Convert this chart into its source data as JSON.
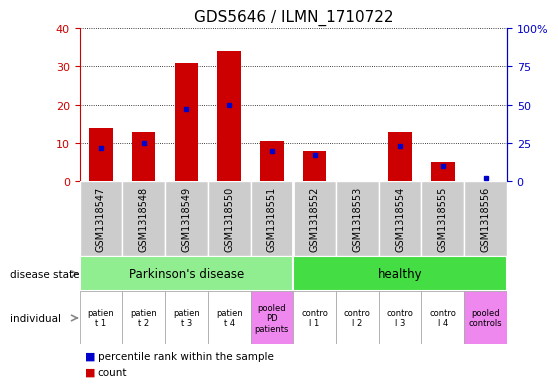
{
  "title": "GDS5646 / ILMN_1710722",
  "samples": [
    "GSM1318547",
    "GSM1318548",
    "GSM1318549",
    "GSM1318550",
    "GSM1318551",
    "GSM1318552",
    "GSM1318553",
    "GSM1318554",
    "GSM1318555",
    "GSM1318556"
  ],
  "red_counts": [
    14,
    13,
    31,
    34,
    10.5,
    8,
    0,
    13,
    5,
    0.2
  ],
  "blue_percentiles": [
    22,
    25,
    47,
    50,
    20,
    17,
    0,
    23,
    10,
    2
  ],
  "ylim_left": [
    0,
    40
  ],
  "ylim_right": [
    0,
    100
  ],
  "yticks_left": [
    0,
    10,
    20,
    30,
    40
  ],
  "yticks_right": [
    0,
    25,
    50,
    75,
    100
  ],
  "individual_labels": [
    "patien\nt 1",
    "patien\nt 2",
    "patien\nt 3",
    "patien\nt 4",
    "pooled\nPD\npatients",
    "contro\nl 1",
    "contro\nl 2",
    "contro\nl 3",
    "contro\nl 4",
    "pooled\ncontrols"
  ],
  "individual_colors": [
    "#ff88ff",
    "#ff88ff",
    "#ff88ff",
    "#ff88ff",
    "#ff88ff",
    "#ff88ff",
    "#ff88ff",
    "#ff88ff",
    "#ff88ff",
    "#ff88ff"
  ],
  "bar_width": 0.55,
  "red_color": "#cc0000",
  "blue_color": "#0000cc",
  "bg_color": "#ffffff",
  "tick_label_color_left": "#cc0000",
  "tick_label_color_right": "#0000cc",
  "pd_color": "#90ee90",
  "healthy_color": "#44dd44",
  "indiv_white": "#ffffff",
  "indiv_pink": "#ee88ee",
  "label_fontsize": 8,
  "title_fontsize": 11,
  "xticklabel_fontsize": 7
}
